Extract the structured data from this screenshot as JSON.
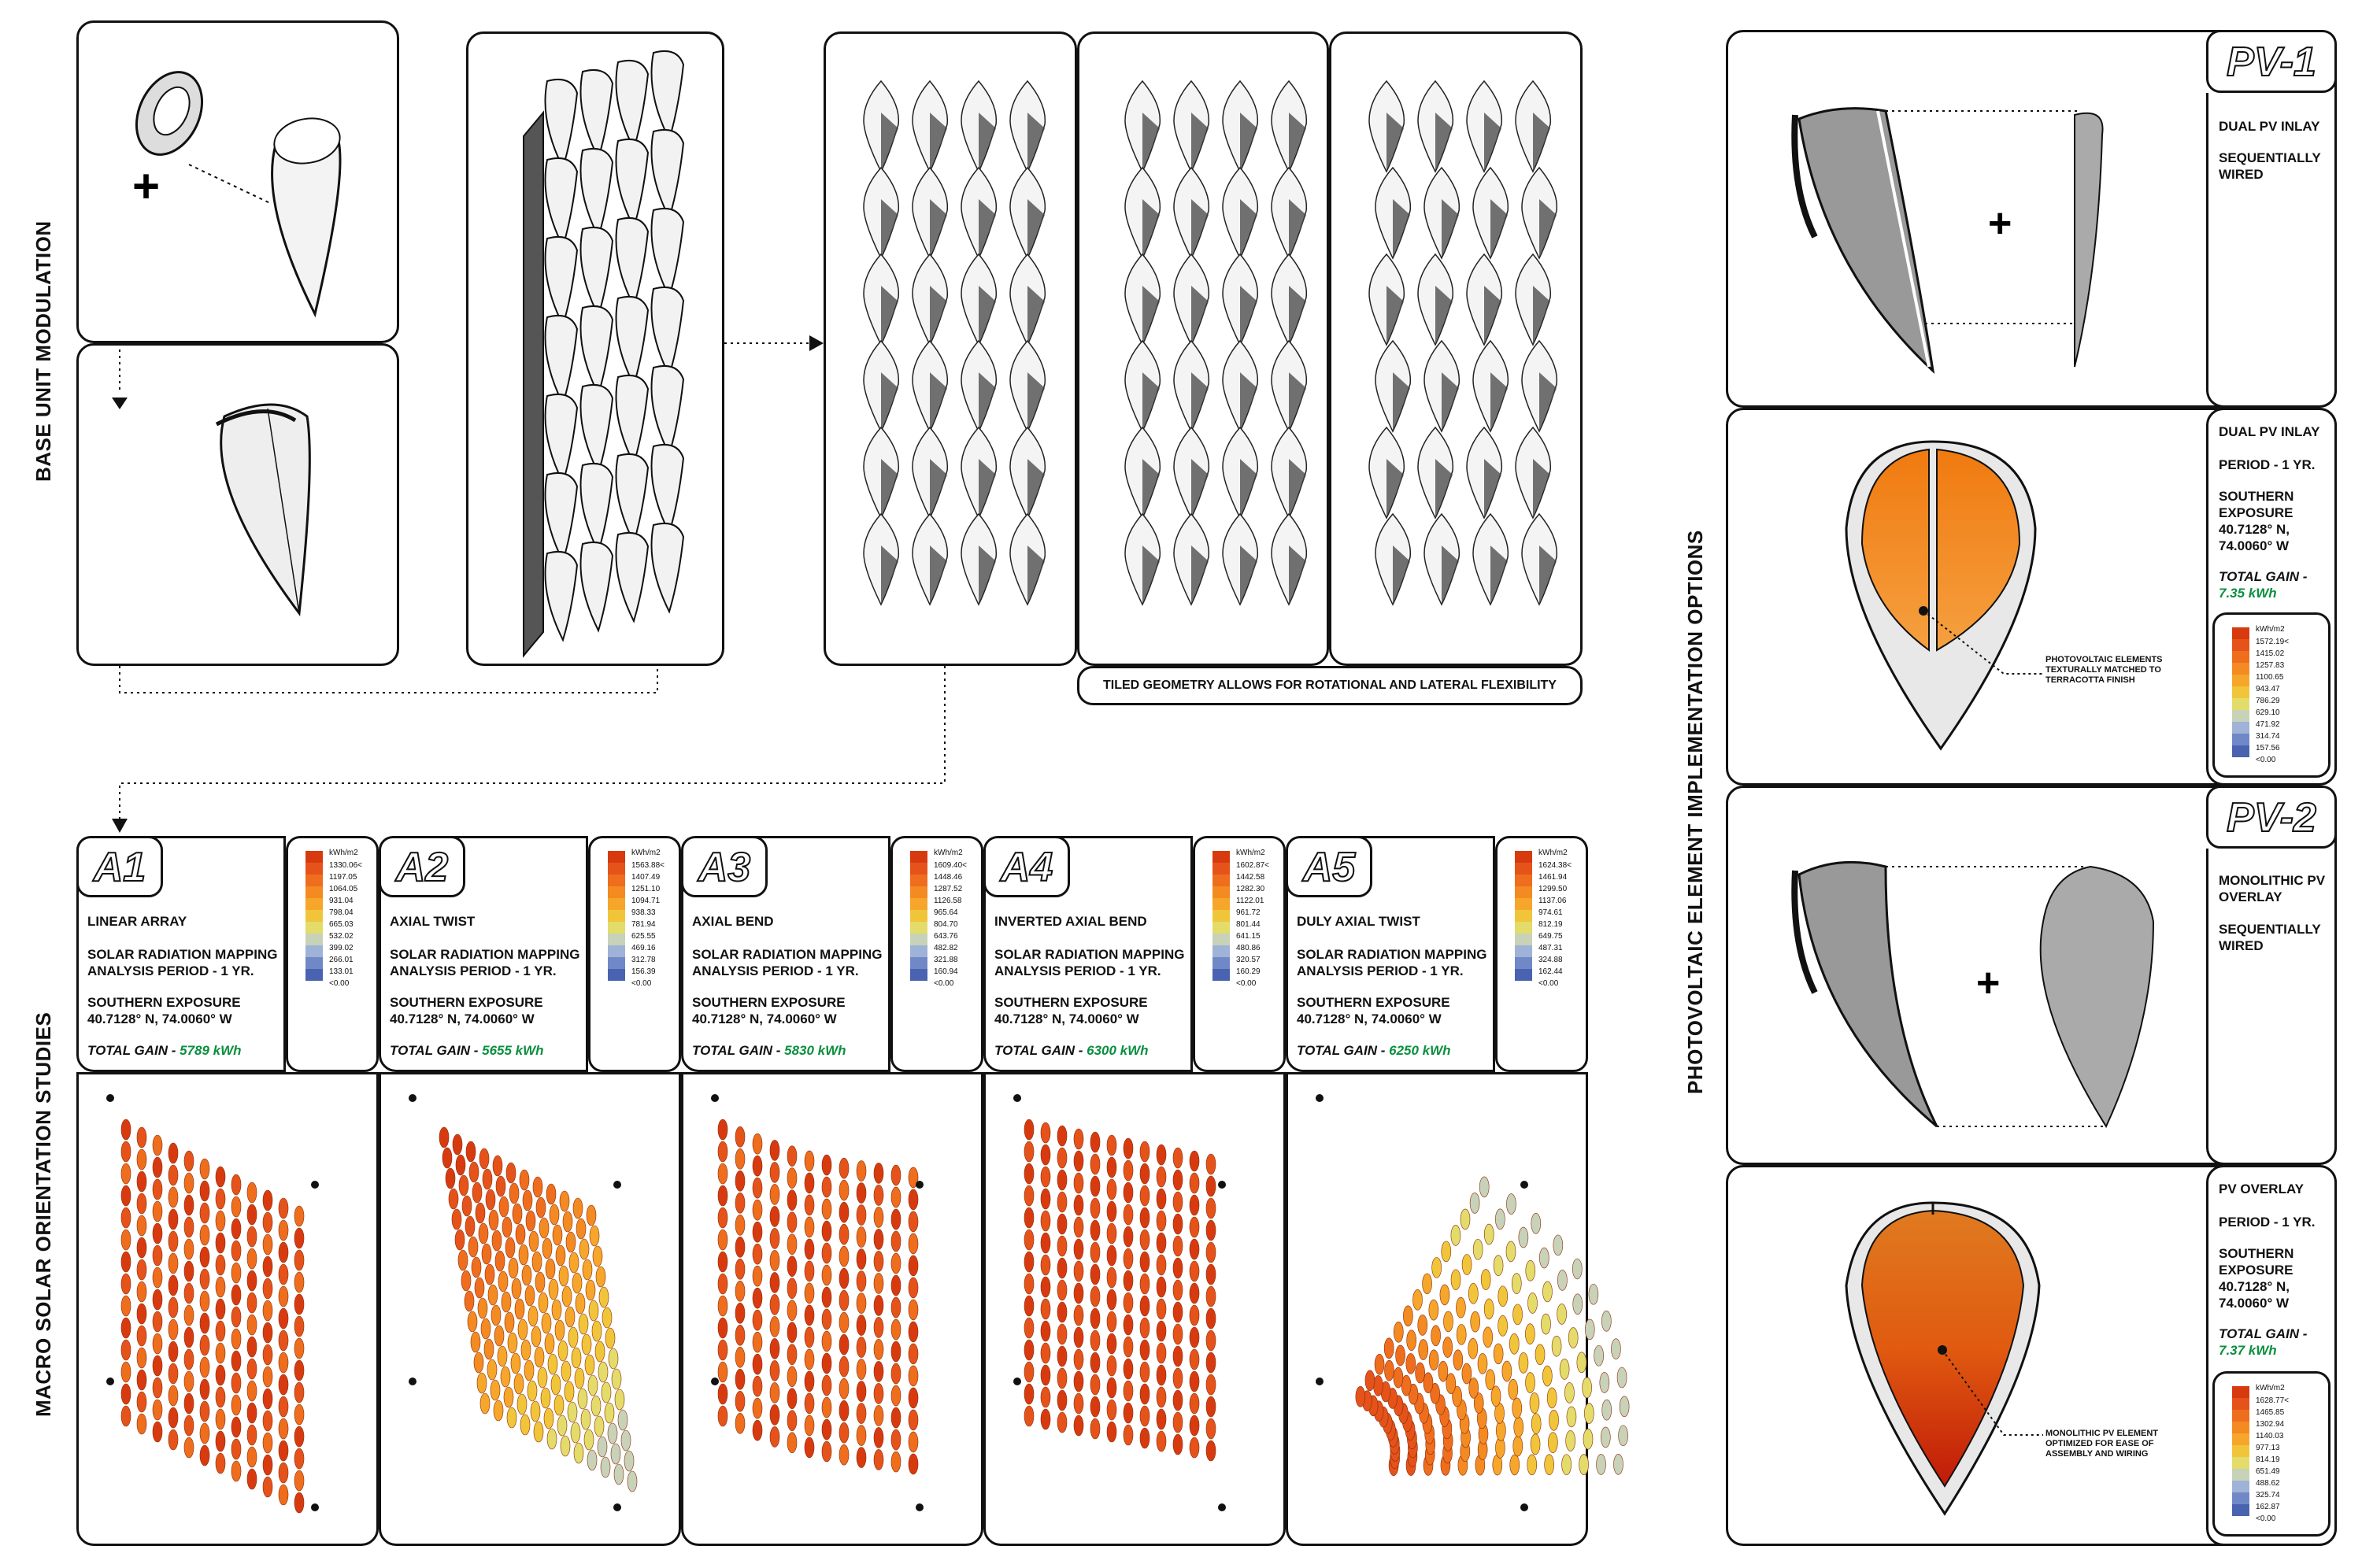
{
  "sections": {
    "base_unit": "BASE UNIT MODULATION",
    "macro": "MACRO SOLAR ORIENTATION STUDIES",
    "pv_options": "PHOTOVOLTAIC ELEMENT IMPLEMENTATION OPTIONS"
  },
  "tiling_caption": "TILED GEOMETRY ALLOWS FOR ROTATIONAL AND LATERAL FLEXIBILITY",
  "legend_unit": "kWh/m2",
  "studies": [
    {
      "id": "A1",
      "title": "LINEAR ARRAY",
      "line1": "SOLAR RADIATION MAPPING",
      "line2": "ANALYSIS PERIOD - 1 YR.",
      "line3": "SOUTHERN EXPOSURE",
      "line4": "40.7128° N, 74.0060° W",
      "gain_label": "TOTAL GAIN -",
      "gain": "5789 kWh",
      "legend": [
        "1330.06<",
        "1197.05",
        "1064.05",
        "931.04",
        "798.04",
        "665.03",
        "532.02",
        "399.02",
        "266.01",
        "133.01",
        "<0.00"
      ]
    },
    {
      "id": "A2",
      "title": "AXIAL TWIST",
      "line1": "SOLAR RADIATION MAPPING",
      "line2": "ANALYSIS PERIOD - 1 YR.",
      "line3": "SOUTHERN EXPOSURE",
      "line4": "40.7128° N, 74.0060° W",
      "gain_label": "TOTAL GAIN -",
      "gain": "5655 kWh",
      "legend": [
        "1563.88<",
        "1407.49",
        "1251.10",
        "1094.71",
        "938.33",
        "781.94",
        "625.55",
        "469.16",
        "312.78",
        "156.39",
        "<0.00"
      ]
    },
    {
      "id": "A3",
      "title": "AXIAL BEND",
      "line1": "SOLAR RADIATION MAPPING",
      "line2": "ANALYSIS PERIOD - 1 YR.",
      "line3": "SOUTHERN EXPOSURE",
      "line4": "40.7128° N, 74.0060° W",
      "gain_label": "TOTAL GAIN -",
      "gain": "5830 kWh",
      "legend": [
        "1609.40<",
        "1448.46",
        "1287.52",
        "1126.58",
        "965.64",
        "804.70",
        "643.76",
        "482.82",
        "321.88",
        "160.94",
        "<0.00"
      ]
    },
    {
      "id": "A4",
      "title": "INVERTED AXIAL BEND",
      "line1": "SOLAR RADIATION MAPPING",
      "line2": "ANALYSIS PERIOD - 1 YR.",
      "line3": "SOUTHERN EXPOSURE",
      "line4": "40.7128° N, 74.0060° W",
      "gain_label": "TOTAL GAIN -",
      "gain": "6300 kWh",
      "legend": [
        "1602.87<",
        "1442.58",
        "1282.30",
        "1122.01",
        "961.72",
        "801.44",
        "641.15",
        "480.86",
        "320.57",
        "160.29",
        "<0.00"
      ]
    },
    {
      "id": "A5",
      "title": "DULY AXIAL TWIST",
      "line1": "SOLAR RADIATION MAPPING",
      "line2": "ANALYSIS PERIOD - 1 YR.",
      "line3": "SOUTHERN EXPOSURE",
      "line4": "40.7128° N, 74.0060° W",
      "gain_label": "TOTAL GAIN -",
      "gain": "6250 kWh",
      "legend": [
        "1624.38<",
        "1461.94",
        "1299.50",
        "1137.06",
        "974.61",
        "812.19",
        "649.75",
        "487.31",
        "324.88",
        "162.44",
        "<0.00"
      ]
    }
  ],
  "pv1": {
    "badge": "PV-1",
    "l1": "DUAL PV INLAY",
    "l2": "SEQUENTIALLY",
    "l3": "WIRED",
    "b1": "DUAL PV INLAY",
    "b2": "PERIOD - 1 YR.",
    "b3": "SOUTHERN",
    "b4": "EXPOSURE",
    "b5": "40.7128° N,",
    "b6": "74.0060° W",
    "gain_label": "TOTAL GAIN -",
    "gain": "7.35 kWh",
    "note1": "PHOTOVOLTAIC ELEMENTS",
    "note2": "TEXTURALLY MATCHED TO",
    "note3": "TERRACOTTA FINISH",
    "legend": [
      "1572.19<",
      "1415.02",
      "1257.83",
      "1100.65",
      "943.47",
      "786.29",
      "629.10",
      "471.92",
      "314.74",
      "157.56",
      "<0.00"
    ]
  },
  "pv2": {
    "badge": "PV-2",
    "l1": "MONOLITHIC PV",
    "l2": "OVERLAY",
    "l3": "SEQUENTIALLY",
    "l4": "WIRED",
    "b1": "PV OVERLAY",
    "b2": "PERIOD - 1 YR.",
    "b3": "SOUTHERN",
    "b4": "EXPOSURE",
    "b5": "40.7128° N,",
    "b6": "74.0060° W",
    "gain_label": "TOTAL GAIN -",
    "gain": "7.37 kWh",
    "note1": "MONOLITHIC PV ELEMENT",
    "note2": "OPTIMIZED FOR EASE OF",
    "note3": "ASSEMBLY AND WIRING",
    "legend": [
      "1628.77<",
      "1465.85",
      "1302.94",
      "1140.03",
      "977.13",
      "814.19",
      "651.49",
      "488.62",
      "325.74",
      "162.87",
      "<0.00"
    ]
  },
  "colors": {
    "gain": "#0a8f3f",
    "hot": "#d83a10",
    "mid": "#f5a21a",
    "cool": "#4a63b0"
  }
}
